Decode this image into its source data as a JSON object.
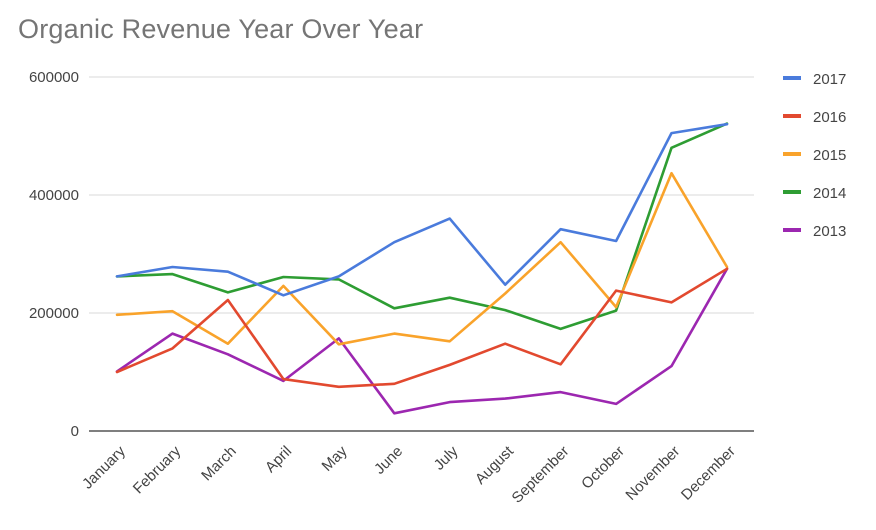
{
  "chart_data": {
    "type": "line",
    "title": "Organic Revenue Year Over Year",
    "xlabel": "",
    "ylabel": "",
    "categories": [
      "January",
      "February",
      "March",
      "April",
      "May",
      "June",
      "July",
      "August",
      "September",
      "October",
      "November",
      "December"
    ],
    "ylim": [
      0,
      600000
    ],
    "yticks": [
      "0",
      "200000",
      "400000",
      "600000"
    ],
    "grid": true,
    "legend_position": "right",
    "series": [
      {
        "name": "2017",
        "color": "#4a7bdc",
        "values": [
          262000,
          278000,
          270000,
          230000,
          262000,
          320000,
          360000,
          248000,
          342000,
          322000,
          505000,
          520000
        ]
      },
      {
        "name": "2016",
        "color": "#e2492f",
        "values": [
          100000,
          140000,
          222000,
          88000,
          75000,
          80000,
          112000,
          148000,
          113000,
          238000,
          218000,
          275000
        ]
      },
      {
        "name": "2015",
        "color": "#f9a32b",
        "values": [
          197000,
          203000,
          148000,
          246000,
          147000,
          165000,
          152000,
          233000,
          320000,
          210000,
          437000,
          278000
        ]
      },
      {
        "name": "2014",
        "color": "#2e9d33",
        "values": [
          262000,
          266000,
          235000,
          261000,
          257000,
          208000,
          226000,
          205000,
          173000,
          204000,
          480000,
          521000
        ]
      },
      {
        "name": "2013",
        "color": "#9c27b0",
        "values": [
          101000,
          165000,
          130000,
          85000,
          157000,
          30000,
          49000,
          55000,
          66000,
          46000,
          110000,
          275000
        ]
      }
    ]
  }
}
